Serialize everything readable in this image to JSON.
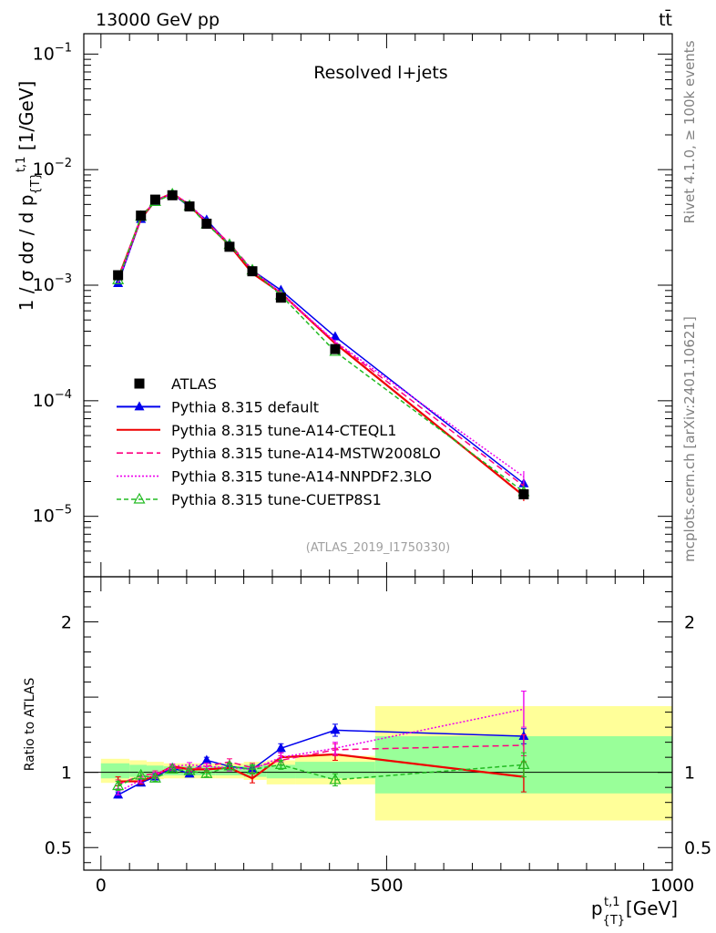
{
  "header": {
    "energy_label": "13000 GeV pp",
    "process_label": "tt̄"
  },
  "side_labels": {
    "rivet": "Rivet 4.1.0, ≥ 100k events",
    "mcplots": "mcplots.cern.ch [arXiv:2401.10621]"
  },
  "chart_data": {
    "type": "line",
    "title": "Resolved l+jets",
    "analysis_ref": "(ATLAS_2019_I1750330)",
    "xlabel": "p_{T}^{t,1} [GeV]",
    "ylabel": "1 / σ dσ / d p_{T}^{t,1} [1/GeV]",
    "ratio_ylabel": "Ratio to ATLAS",
    "xlim": [
      -30,
      1000
    ],
    "ylim": [
      3e-06,
      0.15
    ],
    "ratio_ylim": [
      0.35,
      2.3
    ],
    "x_ticks": [
      0,
      500,
      1000
    ],
    "y_ticks_labels": [
      "10^-5",
      "10^-4",
      "10^-3",
      "10^-2",
      "10^-1"
    ],
    "ratio_ticks": [
      0.5,
      1,
      2
    ],
    "x": [
      30,
      70,
      95,
      125,
      155,
      185,
      225,
      265,
      315,
      410,
      740
    ],
    "data": {
      "name": "ATLAS",
      "values": [
        0.00122,
        0.004,
        0.0055,
        0.006,
        0.0048,
        0.0034,
        0.00215,
        0.00132,
        0.00078,
        0.00028,
        1.55e-05
      ],
      "band_edges": [
        0,
        50,
        80,
        110,
        140,
        170,
        200,
        250,
        290,
        340,
        480,
        1000
      ],
      "stat_band": [
        [
          0.96,
          1.06
        ],
        [
          0.97,
          1.05
        ],
        [
          0.975,
          1.045
        ],
        [
          0.98,
          1.04
        ],
        [
          0.98,
          1.04
        ],
        [
          0.98,
          1.04
        ],
        [
          0.98,
          1.04
        ],
        [
          0.97,
          1.05
        ],
        [
          0.96,
          1.05
        ],
        [
          0.96,
          1.07
        ],
        [
          0.86,
          1.24
        ]
      ],
      "total_band": [
        [
          0.93,
          1.09
        ],
        [
          0.94,
          1.08
        ],
        [
          0.955,
          1.07
        ],
        [
          0.96,
          1.06
        ],
        [
          0.96,
          1.06
        ],
        [
          0.96,
          1.06
        ],
        [
          0.96,
          1.06
        ],
        [
          0.95,
          1.07
        ],
        [
          0.92,
          1.08
        ],
        [
          0.92,
          1.11
        ],
        [
          0.68,
          1.44
        ]
      ]
    },
    "series": [
      {
        "name": "Pythia 8.315 default",
        "color": "#0000ee",
        "dash": "",
        "marker": "triangle",
        "ratios": [
          0.85,
          0.93,
          0.97,
          1.03,
          0.99,
          1.08,
          1.04,
          1.02,
          1.16,
          1.28,
          1.24
        ],
        "errors": [
          0.02,
          0.02,
          0.02,
          0.015,
          0.015,
          0.02,
          0.02,
          0.02,
          0.03,
          0.04,
          0.05
        ]
      },
      {
        "name": "Pythia 8.315 tune-A14-CTEQL1",
        "color": "#ee0000",
        "dash": "",
        "marker": "none",
        "ratios": [
          0.94,
          0.94,
          0.98,
          1.04,
          1.02,
          1.02,
          1.03,
          0.96,
          1.1,
          1.12,
          0.97
        ],
        "errors": [
          0.03,
          0.02,
          0.02,
          0.015,
          0.015,
          0.02,
          0.02,
          0.03,
          0.03,
          0.04,
          0.1
        ]
      },
      {
        "name": "Pythia 8.315 tune-A14-MSTW2008LO",
        "color": "#ff0080",
        "dash": "7,4",
        "marker": "none",
        "ratios": [
          0.92,
          0.98,
          0.99,
          1.03,
          1.02,
          1.04,
          1.07,
          1.03,
          1.08,
          1.15,
          1.18
        ],
        "errors": [
          0.03,
          0.02,
          0.02,
          0.015,
          0.015,
          0.02,
          0.02,
          0.03,
          0.03,
          0.04,
          0.07
        ]
      },
      {
        "name": "Pythia 8.315 tune-A14-NNPDF2.3LO",
        "color": "#ee00ee",
        "dash": "2,2",
        "marker": "none",
        "ratios": [
          0.87,
          0.95,
          0.98,
          1.04,
          1.05,
          1.04,
          1.03,
          1.02,
          1.1,
          1.16,
          1.42
        ],
        "errors": [
          0.02,
          0.02,
          0.02,
          0.015,
          0.015,
          0.02,
          0.02,
          0.03,
          0.03,
          0.04,
          0.12
        ]
      },
      {
        "name": "Pythia 8.315 tune-CUETP8S1",
        "color": "#22bb22",
        "dash": "5,3",
        "marker": "open-triangle",
        "ratios": [
          0.91,
          0.98,
          0.96,
          1.02,
          1.01,
          0.99,
          1.04,
          1.02,
          1.05,
          0.95,
          1.05
        ],
        "errors": [
          0.03,
          0.02,
          0.02,
          0.015,
          0.015,
          0.02,
          0.02,
          0.03,
          0.03,
          0.04,
          0.08
        ]
      }
    ]
  }
}
